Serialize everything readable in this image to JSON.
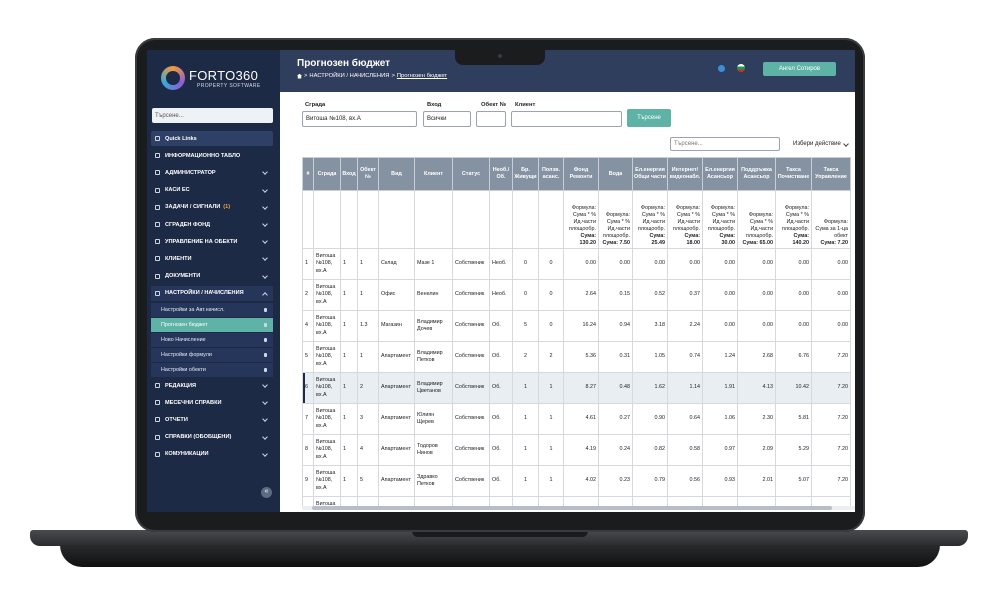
{
  "sidebar": {
    "logo": "FORTO360",
    "tagline": "PROPERTY SOFTWARE",
    "search_placeholder": "Търсене...",
    "menu": [
      {
        "label": "Quick Links",
        "highlight": true
      },
      {
        "label": "ИНФОРМАЦИОННО ТАБЛО"
      },
      {
        "label": "АДМИНИСТРАТОР",
        "chevron": true
      },
      {
        "label": "КАСИ ЕС",
        "chevron": true
      },
      {
        "label": "ЗАДАЧИ / СИГНАЛИ",
        "badge": "(1)",
        "chevron": true
      },
      {
        "label": "СГРАДЕН ФОНД",
        "chevron": true
      },
      {
        "label": "УПРАВЛЕНИЕ НА ОБЕКТИ",
        "chevron": true
      },
      {
        "label": "КЛИЕНТИ",
        "chevron": true
      },
      {
        "label": "ДОКУМЕНТИ",
        "chevron": true
      },
      {
        "label": "НАСТРОЙКИ / НАЧИСЛЕНИЯ",
        "chevron": true,
        "expanded": true,
        "children": [
          {
            "label": "Настройки за Авт.начисл."
          },
          {
            "label": "Прогнозен бюджет",
            "active": true
          },
          {
            "label": "Ново Начисление"
          },
          {
            "label": "Настройки формули"
          },
          {
            "label": "Настройки обекти"
          }
        ]
      },
      {
        "label": "РЕДАКЦИЯ",
        "chevron": true
      },
      {
        "label": "МЕСЕЧНИ СПРАВКИ",
        "chevron": true
      },
      {
        "label": "ОТЧЕТИ",
        "chevron": true
      },
      {
        "label": "СПРАВКИ (ОБОБЩЕНИ)",
        "chevron": true
      },
      {
        "label": "КОМУНИКАЦИИ",
        "chevron": true
      }
    ]
  },
  "header": {
    "title": "Прогнозен бюджет",
    "breadcrumb": [
      "НАСТРОЙКИ / НАЧИСЛЕНИЯ",
      "Прогнозен бюджет"
    ],
    "user": "Ангел Сотиров"
  },
  "filters": {
    "building_label": "Сграда",
    "building_value": "Витоша №108, вх.А",
    "entrance_label": "Вход",
    "entrance_value": "Всички",
    "unit_label": "Обект №",
    "client_label": "Клиент",
    "search_button": "Търсене",
    "table_search": "Търсене...",
    "action": "Избери действие"
  },
  "table": {
    "columns": [
      "#",
      "Сграда",
      "Вход",
      "Обект №",
      "Вид",
      "Клиент",
      "Статус",
      "Необ./ Об.",
      "Бр. Живущи",
      "Ползв. асанс.",
      "Фонд Ремонти",
      "Вода",
      "Ел.енергия Общи части",
      "Интернет/ видеонабл.",
      "Ел.енергия Асансьор",
      "Поддръжка Асансьор",
      "Такса Почистване",
      "Такса Управление"
    ],
    "formulas": [
      null,
      null,
      null,
      null,
      null,
      null,
      null,
      null,
      null,
      null,
      {
        "formula": "Формула: Сума * % Ид.части площообр.",
        "sum": "Сума: 130.20"
      },
      {
        "formula": "Формула: Сума * % Ид.части площообр.",
        "sum": "Сума: 7.50"
      },
      {
        "formula": "Формула: Сума * % Ид.части площообр.",
        "sum": "Сума: 25.49"
      },
      {
        "formula": "Формула: Сума * % Ид.части площообр.",
        "sum": "Сума: 18.00"
      },
      {
        "formula": "Формула: Сума * % Ид.части площообр.",
        "sum": "Сума: 30.00"
      },
      {
        "formula": "Формула: Сума * % Ид.части площообр.",
        "sum": "Сума: 65.00"
      },
      {
        "formula": "Формула: Сума * % Ид.части площообр.",
        "sum": "Сума: 140.20"
      },
      {
        "formula": "Формула: Сума за 1-ца обект",
        "sum": "Сума: 7.20"
      }
    ],
    "selected_row": 4,
    "rows": [
      [
        "1",
        "Витоша №108, вх.А",
        "1",
        "1",
        "Склад",
        "Мазе 1",
        "Собственик",
        "Необ.",
        "0",
        "0",
        "0.00",
        "0.00",
        "0.00",
        "0.00",
        "0.00",
        "0.00",
        "0.00",
        "0.00"
      ],
      [
        "2",
        "Витоша №108, вх.А",
        "1",
        "1",
        "Офис",
        "Венелин",
        "Собственик",
        "Необ.",
        "0",
        "0",
        "2.64",
        "0.15",
        "0.52",
        "0.37",
        "0.00",
        "0.00",
        "0.00",
        "0.00"
      ],
      [
        "4",
        "Витоша №108, вх.А",
        "1",
        "1.3",
        "Магазин",
        "Владимир Дочев",
        "Собственик",
        "Об.",
        "5",
        "0",
        "16.24",
        "0.94",
        "3.18",
        "2.24",
        "0.00",
        "0.00",
        "0.00",
        "0.00"
      ],
      [
        "5",
        "Витоша №108, вх.А",
        "1",
        "1",
        "Апартамент",
        "Владимир Петков",
        "Собственик",
        "Об.",
        "2",
        "2",
        "5.36",
        "0.31",
        "1.05",
        "0.74",
        "1.24",
        "2.68",
        "6.76",
        "7.20"
      ],
      [
        "6",
        "Витоша №108, вх.А",
        "1",
        "2",
        "Апартамент",
        "Владимир Цветанов",
        "Собственик",
        "Об.",
        "1",
        "1",
        "8.27",
        "0.48",
        "1.62",
        "1.14",
        "1.91",
        "4.13",
        "10.42",
        "7.20"
      ],
      [
        "7",
        "Витоша №108, вх.А",
        "1",
        "3",
        "Апартамент",
        "Юлиян Щерев",
        "Собственик",
        "Об.",
        "1",
        "1",
        "4.61",
        "0.27",
        "0.90",
        "0.64",
        "1.06",
        "2.30",
        "5.81",
        "7.20"
      ],
      [
        "8",
        "Витоша №108, вх.А",
        "1",
        "4",
        "Апартамент",
        "Тодоров Нинов",
        "Собственик",
        "Об.",
        "1",
        "1",
        "4.19",
        "0.24",
        "0.82",
        "0.58",
        "0.97",
        "2.09",
        "5.29",
        "7.20"
      ],
      [
        "9",
        "Витоша №108, вх.А",
        "1",
        "5",
        "Апартамент",
        "Здравко Петков",
        "Собственик",
        "Об.",
        "1",
        "1",
        "4.02",
        "0.23",
        "0.79",
        "0.56",
        "0.93",
        "2.01",
        "5.07",
        "7.20"
      ],
      [
        null,
        "Витоша №108, вх.А",
        null,
        null,
        null,
        "Ася",
        null,
        null,
        null,
        null,
        null,
        null,
        null,
        null,
        null,
        null,
        null,
        null
      ]
    ]
  }
}
